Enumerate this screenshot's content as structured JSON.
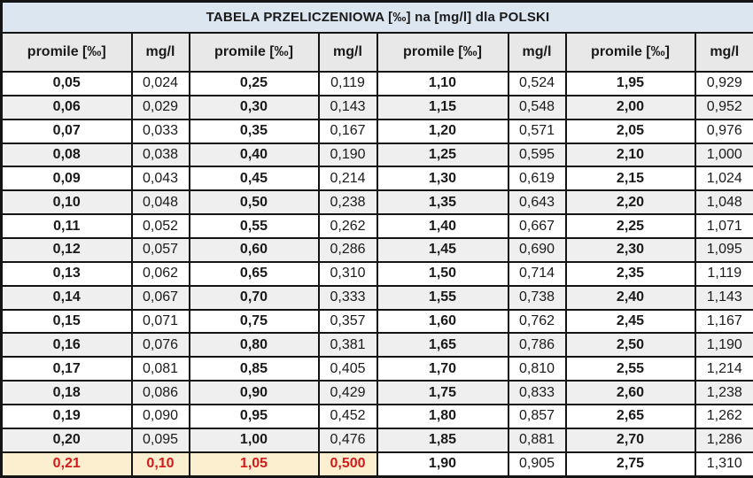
{
  "title": "TABELA PRZELICZENIOWA [‰] na [mg/l] dla POLSKI",
  "colors": {
    "title_bg": "#dce6f1",
    "header_bg": "#e8e8e8",
    "row_alt_bg": "#efefef",
    "highlight_bg": "#fcefd0",
    "highlight_text": "#d21b1b",
    "border": "#141414",
    "text": "#1a1a1a"
  },
  "chart_data": {
    "type": "table",
    "title": "TABELA PRZELICZENIOWA [‰] na [mg/l] dla POLSKI",
    "column_headers": [
      "promile [‰]",
      "mg/l",
      "promile [‰]",
      "mg/l",
      "promile [‰]",
      "mg/l",
      "promile [‰]",
      "mg/l"
    ],
    "rows": [
      [
        "0,05",
        "0,024",
        "0,25",
        "0,119",
        "1,10",
        "0,524",
        "1,95",
        "0,929"
      ],
      [
        "0,06",
        "0,029",
        "0,30",
        "0,143",
        "1,15",
        "0,548",
        "2,00",
        "0,952"
      ],
      [
        "0,07",
        "0,033",
        "0,35",
        "0,167",
        "1,20",
        "0,571",
        "2,05",
        "0,976"
      ],
      [
        "0,08",
        "0,038",
        "0,40",
        "0,190",
        "1,25",
        "0,595",
        "2,10",
        "1,000"
      ],
      [
        "0,09",
        "0,043",
        "0,45",
        "0,214",
        "1,30",
        "0,619",
        "2,15",
        "1,024"
      ],
      [
        "0,10",
        "0,048",
        "0,50",
        "0,238",
        "1,35",
        "0,643",
        "2,20",
        "1,048"
      ],
      [
        "0,11",
        "0,052",
        "0,55",
        "0,262",
        "1,40",
        "0,667",
        "2,25",
        "1,071"
      ],
      [
        "0,12",
        "0,057",
        "0,60",
        "0,286",
        "1,45",
        "0,690",
        "2,30",
        "1,095"
      ],
      [
        "0,13",
        "0,062",
        "0,65",
        "0,310",
        "1,50",
        "0,714",
        "2,35",
        "1,119"
      ],
      [
        "0,14",
        "0,067",
        "0,70",
        "0,333",
        "1,55",
        "0,738",
        "2,40",
        "1,143"
      ],
      [
        "0,15",
        "0,071",
        "0,75",
        "0,357",
        "1,60",
        "0,762",
        "2,45",
        "1,167"
      ],
      [
        "0,16",
        "0,076",
        "0,80",
        "0,381",
        "1,65",
        "0,786",
        "2,50",
        "1,190"
      ],
      [
        "0,17",
        "0,081",
        "0,85",
        "0,405",
        "1,70",
        "0,810",
        "2,55",
        "1,214"
      ],
      [
        "0,18",
        "0,086",
        "0,90",
        "0,429",
        "1,75",
        "0,833",
        "2,60",
        "1,238"
      ],
      [
        "0,19",
        "0,090",
        "0,95",
        "0,452",
        "1,80",
        "0,857",
        "2,65",
        "1,262"
      ],
      [
        "0,20",
        "0,095",
        "1,00",
        "0,476",
        "1,85",
        "0,881",
        "2,70",
        "1,286"
      ],
      [
        "0,21",
        "0,10",
        "1,05",
        "0,500",
        "1,90",
        "0,905",
        "2,75",
        "1,310"
      ]
    ],
    "highlight": {
      "row_index": 16,
      "col_count": 4
    }
  }
}
